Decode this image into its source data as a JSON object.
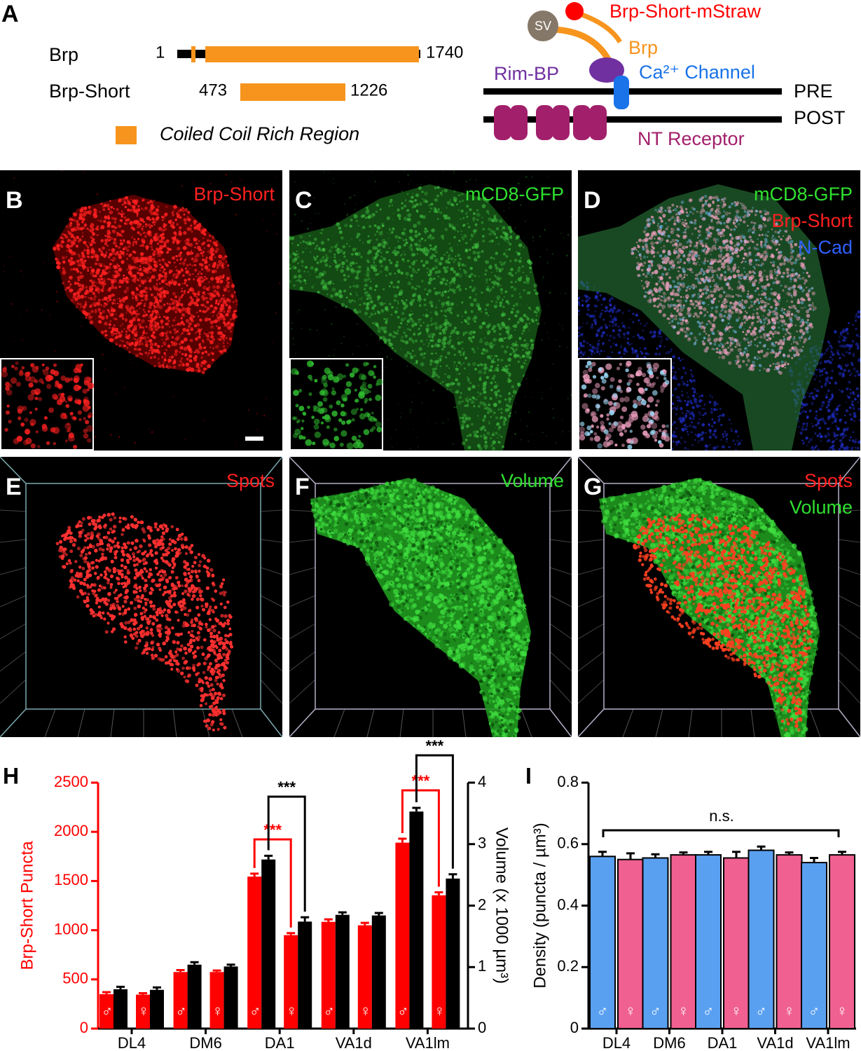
{
  "panel_a": {
    "label": "A",
    "brp": {
      "name": "Brp",
      "start": "1",
      "end": "1740"
    },
    "brp_short": {
      "name": "Brp-Short",
      "start": "473",
      "end": "1226"
    },
    "legend": "Coiled Coil Rich Region",
    "schematic": {
      "sv": "SV",
      "mstraw": "Brp-Short-mStraw",
      "brp": "Brp",
      "rimbp": "Rim-BP",
      "channel": "Ca²⁺ Channel",
      "pre": "PRE",
      "post": "POST",
      "receptor": "NT Receptor"
    }
  },
  "images": [
    {
      "label": "B",
      "captions": [
        "Brp-Short"
      ],
      "caption_colors": [
        "#ff2020"
      ]
    },
    {
      "label": "C",
      "captions": [
        "mCD8-GFP"
      ],
      "caption_colors": [
        "#30e030"
      ]
    },
    {
      "label": "D",
      "captions": [
        "mCD8-GFP",
        "Brp-Short",
        "N-Cad"
      ],
      "caption_colors": [
        "#30e030",
        "#ff2020",
        "#3060ff"
      ]
    },
    {
      "label": "E",
      "captions": [
        "Spots"
      ],
      "caption_colors": [
        "#ff2020"
      ]
    },
    {
      "label": "F",
      "captions": [
        "Volume"
      ],
      "caption_colors": [
        "#30e030"
      ]
    },
    {
      "label": "G",
      "captions": [
        "Spots",
        "Volume"
      ],
      "caption_colors": [
        "#ff2020",
        "#30e030"
      ]
    }
  ],
  "chart_data": [
    {
      "type": "bar",
      "label": "H",
      "groups": [
        "DL4",
        "DM6",
        "DA1",
        "VA1d",
        "VA1lm"
      ],
      "categories": [
        "♂",
        "♀",
        "♂",
        "♀",
        "♂",
        "♀",
        "♂",
        "♀",
        "♂",
        "♀"
      ],
      "ylabel": "Brp-Short Puncta",
      "y2label": "Volume (x 1000 µm³)",
      "ylim": [
        0,
        2500
      ],
      "yticks": [
        0,
        500,
        1000,
        1500,
        2000,
        2500
      ],
      "y2lim": [
        0,
        4
      ],
      "y2ticks": [
        0,
        1,
        2,
        3,
        4
      ],
      "series": [
        {
          "color": "#ff0000",
          "values": [
            350,
            345,
            575,
            575,
            1545,
            950,
            1085,
            1050,
            1890,
            1355
          ],
          "errors": [
            20,
            15,
            20,
            15,
            30,
            20,
            25,
            25,
            40,
            30
          ]
        },
        {
          "color": "#000000",
          "axis": "y2",
          "values": [
            0.64,
            0.63,
            1.04,
            1.01,
            2.75,
            1.74,
            1.85,
            1.84,
            3.53,
            2.44
          ],
          "errors": [
            0.04,
            0.04,
            0.04,
            0.03,
            0.06,
            0.07,
            0.04,
            0.04,
            0.06,
            0.07
          ]
        }
      ],
      "annotations": [
        {
          "text": "***",
          "color": "#ff0000"
        },
        {
          "text": "***",
          "color": "#000000"
        },
        {
          "text": "***",
          "color": "#ff0000"
        },
        {
          "text": "***",
          "color": "#000000"
        }
      ]
    },
    {
      "type": "bar",
      "label": "I",
      "groups": [
        "DL4",
        "DM6",
        "DA1",
        "VA1d",
        "VA1lm"
      ],
      "categories": [
        "♂",
        "♀",
        "♂",
        "♀",
        "♂",
        "♀",
        "♂",
        "♀",
        "♂",
        "♀"
      ],
      "ylabel": "Density (puncta / µm³)",
      "ylim": [
        0,
        0.8
      ],
      "yticks": [
        0,
        0.2,
        0.4,
        0.6,
        0.8
      ],
      "series": [
        {
          "colors": [
            "#5aa0f0",
            "#f06090"
          ],
          "values": [
            0.56,
            0.55,
            0.555,
            0.565,
            0.565,
            0.555,
            0.58,
            0.565,
            0.54,
            0.565
          ],
          "errors": [
            0.015,
            0.02,
            0.012,
            0.008,
            0.01,
            0.02,
            0.012,
            0.008,
            0.015,
            0.01
          ]
        }
      ],
      "annotations": [
        {
          "text": "n.s.",
          "color": "#000000"
        }
      ]
    }
  ]
}
